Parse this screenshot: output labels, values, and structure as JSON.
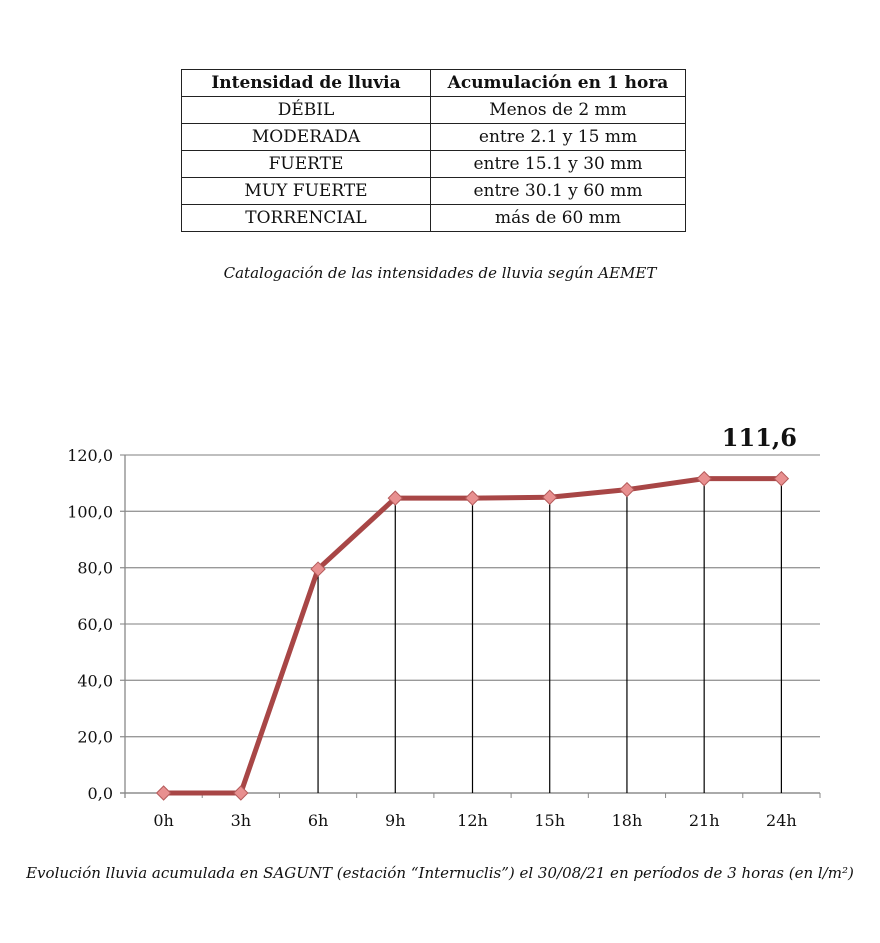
{
  "table": {
    "headers": [
      "Intensidad de lluvia",
      "Acumulación en 1 hora"
    ],
    "rows": [
      [
        "DÉBIL",
        "Menos de 2 mm"
      ],
      [
        "MODERADA",
        "entre 2.1 y 15 mm"
      ],
      [
        "FUERTE",
        "entre 15.1 y 30 mm"
      ],
      [
        "MUY FUERTE",
        "entre 30.1 y 60 mm"
      ],
      [
        "TORRENCIAL",
        "más de 60 mm"
      ]
    ],
    "caption": "Catalogación de las intensidades de lluvia según AEMET"
  },
  "chart_data": {
    "type": "line",
    "categories": [
      "0h",
      "3h",
      "6h",
      "9h",
      "12h",
      "15h",
      "18h",
      "21h",
      "24h"
    ],
    "values": [
      0,
      0,
      79.5,
      104.7,
      104.7,
      105.0,
      107.7,
      111.6,
      111.6
    ],
    "ylim": [
      0,
      120
    ],
    "yticks": [
      "0,0",
      "20,0",
      "40,0",
      "60,0",
      "80,0",
      "100,0",
      "120,0"
    ],
    "grid": true,
    "drop_lines": true,
    "annotation": "111,6",
    "line_color": "#a84646",
    "marker_color": "#e89090",
    "caption": "Evolución lluvia acumulada en SAGUNT (estación “Internuclis”) el 30/08/21 en períodos de 3 horas (en l/m²)"
  }
}
